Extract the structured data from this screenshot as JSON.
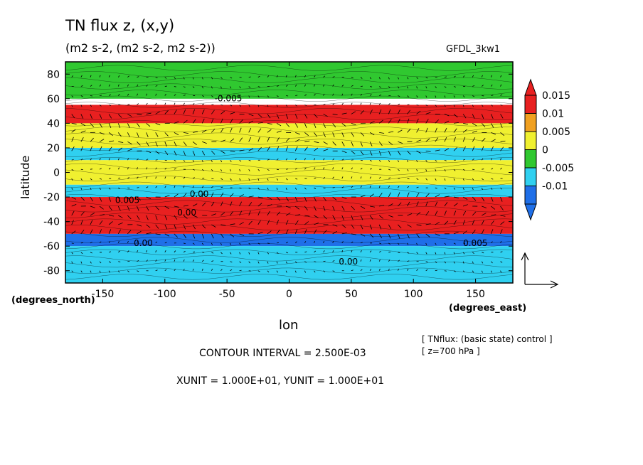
{
  "chart_data": {
    "type": "heatmap",
    "title": "TN flux z, (x,y)",
    "subtitle": "(m2 s-2, (m2 s-2, m2 s-2))",
    "model_label": "GFDL_3kw1",
    "ylabel": "latitude",
    "xlabel": "lon",
    "y_unit_label": "(degrees_north)",
    "x_unit_label": "(degrees_east)",
    "xlim": [
      -180,
      180
    ],
    "ylim": [
      -90,
      90
    ],
    "x_ticks": [
      -150,
      -100,
      -50,
      0,
      50,
      100,
      150
    ],
    "x_tick_labels": [
      "-150",
      "-100",
      "-50",
      "0",
      "50",
      "100",
      "150"
    ],
    "y_ticks": [
      80,
      60,
      40,
      20,
      0,
      -20,
      -40,
      -60,
      -80
    ],
    "y_tick_labels": [
      "80",
      "60",
      "40",
      "20",
      "0",
      "-20",
      "-40",
      "-60",
      "-80"
    ],
    "colorbar": {
      "levels": [
        -0.01,
        -0.005,
        0,
        0.005,
        0.01,
        0.015
      ],
      "labels": [
        "-0.01",
        "-0.005",
        "0",
        "0.005",
        "0.01",
        "0.015"
      ],
      "colors": [
        "#1f6fe8",
        "#30d0f0",
        "#30c830",
        "#f0f030",
        "#f0a020",
        "#e82020"
      ]
    },
    "bands": [
      {
        "lat": [
          60,
          90
        ],
        "level": 0
      },
      {
        "lat": [
          40,
          55
        ],
        "level": 0.015
      },
      {
        "lat": [
          20,
          40
        ],
        "level": 0.005
      },
      {
        "lat": [
          10,
          20
        ],
        "level": -0.005
      },
      {
        "lat": [
          -10,
          10
        ],
        "level": 0.005
      },
      {
        "lat": [
          -20,
          -10
        ],
        "level": -0.005
      },
      {
        "lat": [
          -50,
          -20
        ],
        "level": 0.015
      },
      {
        "lat": [
          -60,
          -50
        ],
        "level": -0.01
      },
      {
        "lat": [
          -90,
          -60
        ],
        "level": -0.005
      }
    ],
    "contour_labels": [
      "0.005",
      "0.00",
      "-0.005",
      "0.00",
      "0.005",
      "0.00",
      "0.00"
    ],
    "vector_reference": {
      "xunit": "1.000E+01",
      "yunit": "1.000E+01"
    }
  },
  "footer": {
    "contour_interval": "CONTOUR INTERVAL = 2.500E-03",
    "units": "XUNIT = 1.000E+01, YUNIT = 1.000E+01",
    "note1": "[ TNflux: (basic state) control ]",
    "note2": "[ z=700 hPa ]"
  }
}
